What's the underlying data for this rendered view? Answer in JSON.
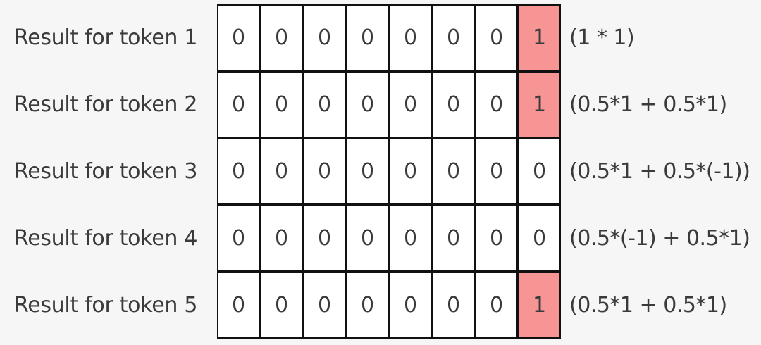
{
  "rows": [
    {
      "label": "Result for token 1",
      "values": [
        "0",
        "0",
        "0",
        "0",
        "0",
        "0",
        "0",
        "1"
      ],
      "highlight_last": true,
      "formula": "(1 * 1)"
    },
    {
      "label": "Result for token 2",
      "values": [
        "0",
        "0",
        "0",
        "0",
        "0",
        "0",
        "0",
        "1"
      ],
      "highlight_last": true,
      "formula": "(0.5*1 + 0.5*1)"
    },
    {
      "label": "Result for token 3",
      "values": [
        "0",
        "0",
        "0",
        "0",
        "0",
        "0",
        "0",
        "0"
      ],
      "highlight_last": false,
      "formula": "(0.5*1 + 0.5*(-1))"
    },
    {
      "label": "Result for token 4",
      "values": [
        "0",
        "0",
        "0",
        "0",
        "0",
        "0",
        "0",
        "0"
      ],
      "highlight_last": false,
      "formula": "(0.5*(-1) + 0.5*1)"
    },
    {
      "label": "Result for token 5",
      "values": [
        "0",
        "0",
        "0",
        "0",
        "0",
        "0",
        "0",
        "1"
      ],
      "highlight_last": true,
      "formula": "(0.5*1 + 0.5*1)"
    }
  ],
  "colors": {
    "background": "#f6f6f6",
    "cell_fill": "#ffffff",
    "highlight_fill": "#f79595",
    "border": "#111111",
    "text": "#3a3a3a"
  }
}
